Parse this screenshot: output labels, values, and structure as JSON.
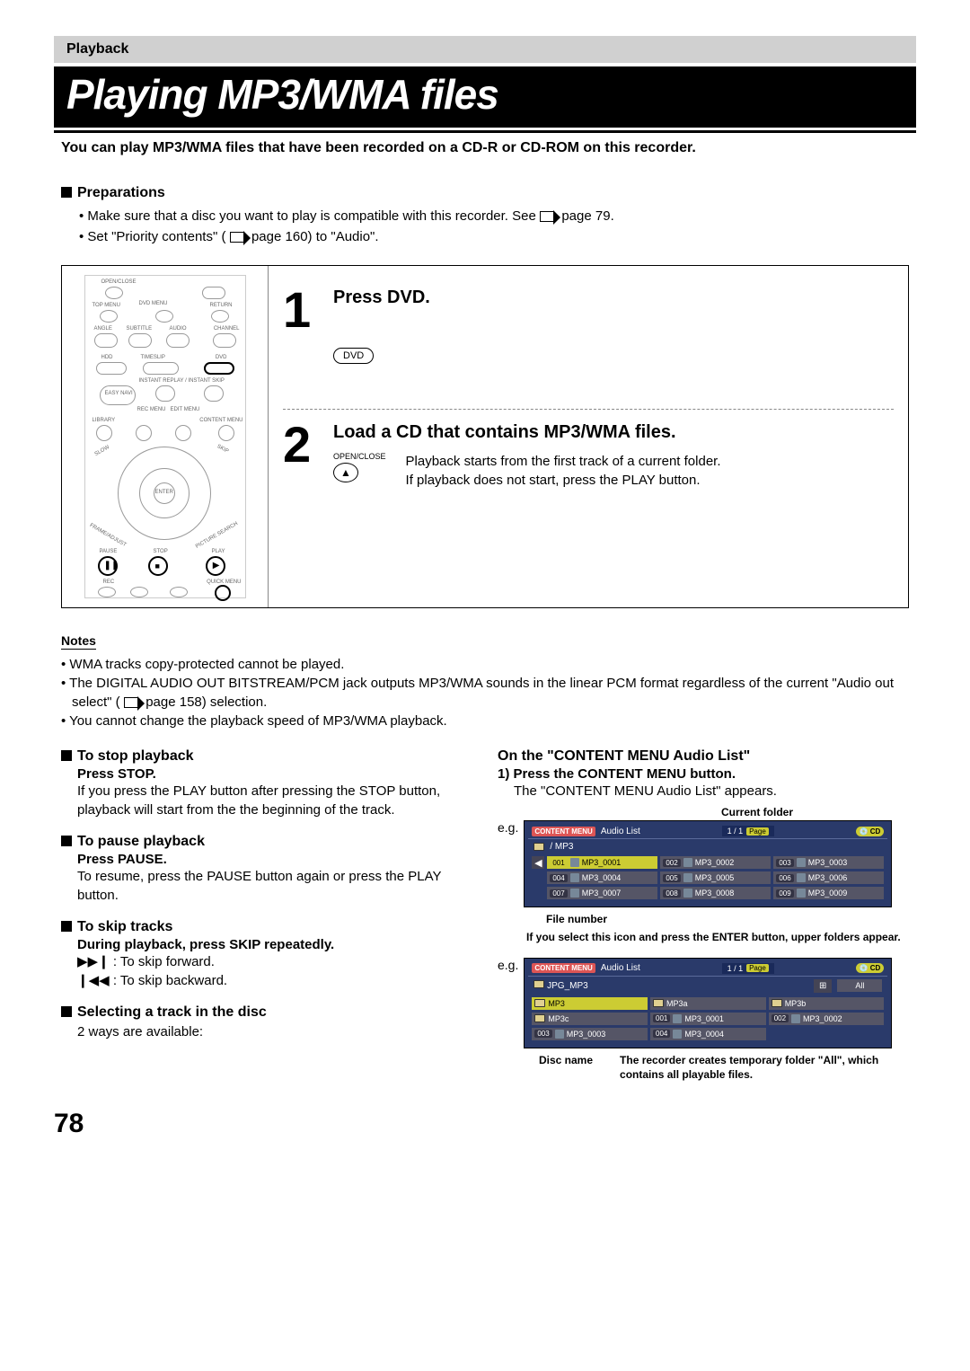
{
  "header": {
    "section": "Playback"
  },
  "title": "Playing MP3/WMA files",
  "intro": "You can play MP3/WMA files that have been recorded on a CD-R or CD-ROM on this recorder.",
  "preparations": {
    "heading": "Preparations",
    "items": [
      {
        "pre": "Make sure that a disc you want to play is compatible with this recorder. See ",
        "page": "page 79."
      },
      {
        "pre": "Set \"Priority contents\" ( ",
        "page": "page 160) to \"Audio\"."
      }
    ]
  },
  "steps": [
    {
      "num": "1",
      "title": "Press DVD.",
      "button": "DVD"
    },
    {
      "num": "2",
      "title": "Load a CD that contains MP3/WMA files.",
      "btn_label": "OPEN/CLOSE",
      "text1": "Playback starts from the first track of a current folder.",
      "text2": "If playback does not start, press the PLAY button."
    }
  ],
  "notes": {
    "heading": "Notes",
    "items": [
      "WMA tracks copy-protected cannot be played.",
      {
        "pre": "The DIGITAL AUDIO OUT BITSTREAM/PCM jack outputs MP3/WMA sounds in the linear PCM format regardless of the current \"Audio out select\" ( ",
        "post": "page 158) selection."
      },
      "You cannot change the playback speed of MP3/WMA playback."
    ]
  },
  "left_col": {
    "stop": {
      "h": "To stop playback",
      "b": "Press STOP.",
      "t": "If you press the PLAY button after pressing the STOP button, playback will start from the the beginning of the track."
    },
    "pause": {
      "h": "To pause playback",
      "b": "Press PAUSE.",
      "t": "To resume, press the PAUSE button again or press the PLAY button."
    },
    "skip": {
      "h": "To skip tracks",
      "b": "During playback, press SKIP repeatedly.",
      "fwd": ": To skip forward.",
      "bwd": ": To skip backward."
    },
    "select": {
      "h": "Selecting a track in the disc",
      "t": "2 ways are available:"
    }
  },
  "right_col": {
    "h": "On the \"CONTENT MENU Audio List\"",
    "step1b": "1) Press the CONTENT MENU button.",
    "step1t": "The \"CONTENT MENU Audio List\" appears.",
    "current_folder": "Current folder",
    "eg": "e.g.",
    "menu1": {
      "title": "Audio List",
      "logo": "CONTENT MENU",
      "page": "1 / 1",
      "page_label": "Page",
      "disc": "CD",
      "path": "/  MP3",
      "cells": [
        [
          "001",
          "MP3_0001",
          true
        ],
        [
          "002",
          "MP3_0002",
          false
        ],
        [
          "003",
          "MP3_0003",
          false
        ],
        [
          "004",
          "MP3_0004",
          false
        ],
        [
          "005",
          "MP3_0005",
          false
        ],
        [
          "006",
          "MP3_0006",
          false
        ],
        [
          "007",
          "MP3_0007",
          false
        ],
        [
          "008",
          "MP3_0008",
          false
        ],
        [
          "009",
          "MP3_0009",
          false
        ]
      ]
    },
    "file_number": "File number",
    "callout1": "If you select this icon and press the ENTER button, upper folders appear.",
    "menu2": {
      "title": "Audio List",
      "logo": "CONTENT MENU",
      "page": "1 / 1",
      "page_label": "Page",
      "disc": "CD",
      "path": "JPG_MP3",
      "all": "All",
      "folders": [
        "MP3",
        "MP3a",
        "MP3b",
        "MP3c"
      ],
      "files": [
        [
          "001",
          "MP3_0001"
        ],
        [
          "002",
          "MP3_0002"
        ],
        [
          "003",
          "MP3_0003"
        ],
        [
          "004",
          "MP3_0004"
        ]
      ]
    },
    "disc_name": "Disc name",
    "callout2": "The recorder creates temporary folder \"All\", which contains all playable files."
  },
  "page_number": "78",
  "colors": {
    "title_bg": "#000000",
    "header_bg": "#d0d0d0",
    "menu_bg": "#2a3a6a",
    "highlight": "#cccc33"
  }
}
